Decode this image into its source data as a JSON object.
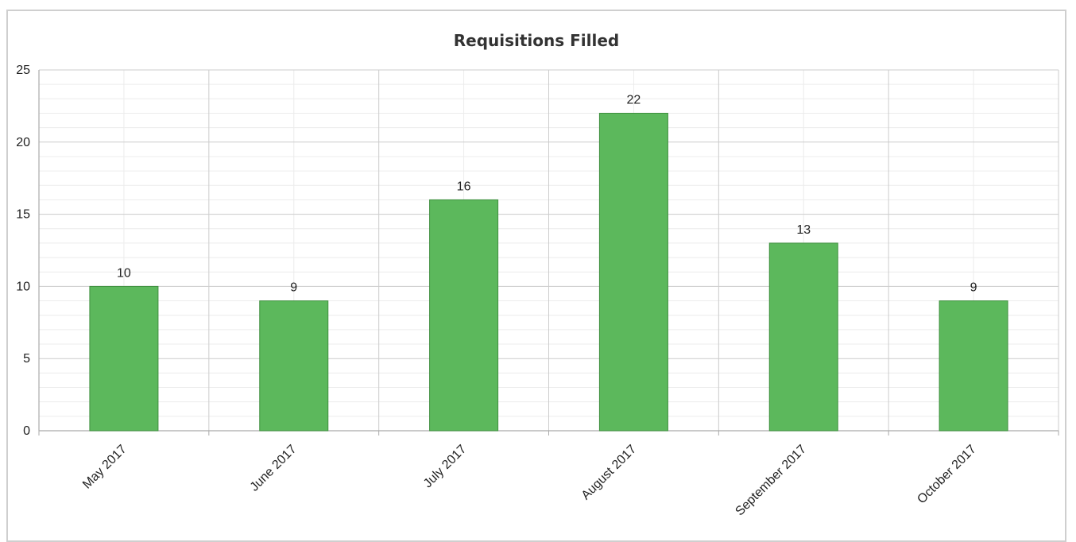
{
  "colors": {
    "bar_fill": "#5cb85c",
    "bar_stroke": "#3f8f3f",
    "grid_major": "#cccccc",
    "grid_minor": "#ececec",
    "axis": "#aaaaaa",
    "text": "#222222"
  },
  "chart_data": {
    "type": "bar",
    "title": "Requisitions Filled",
    "categories": [
      "May 2017",
      "June 2017",
      "July 2017",
      "August 2017",
      "September 2017",
      "October 2017"
    ],
    "values": [
      10,
      9,
      16,
      22,
      13,
      9
    ],
    "data_labels": [
      "10",
      "9",
      "16",
      "22",
      "13",
      "9"
    ],
    "ylim": [
      0,
      25
    ],
    "yticks": [
      0,
      5,
      10,
      15,
      20,
      25
    ],
    "y_minor_step": 1,
    "x_labels_rotated": true,
    "grid": true,
    "legend": "none"
  }
}
